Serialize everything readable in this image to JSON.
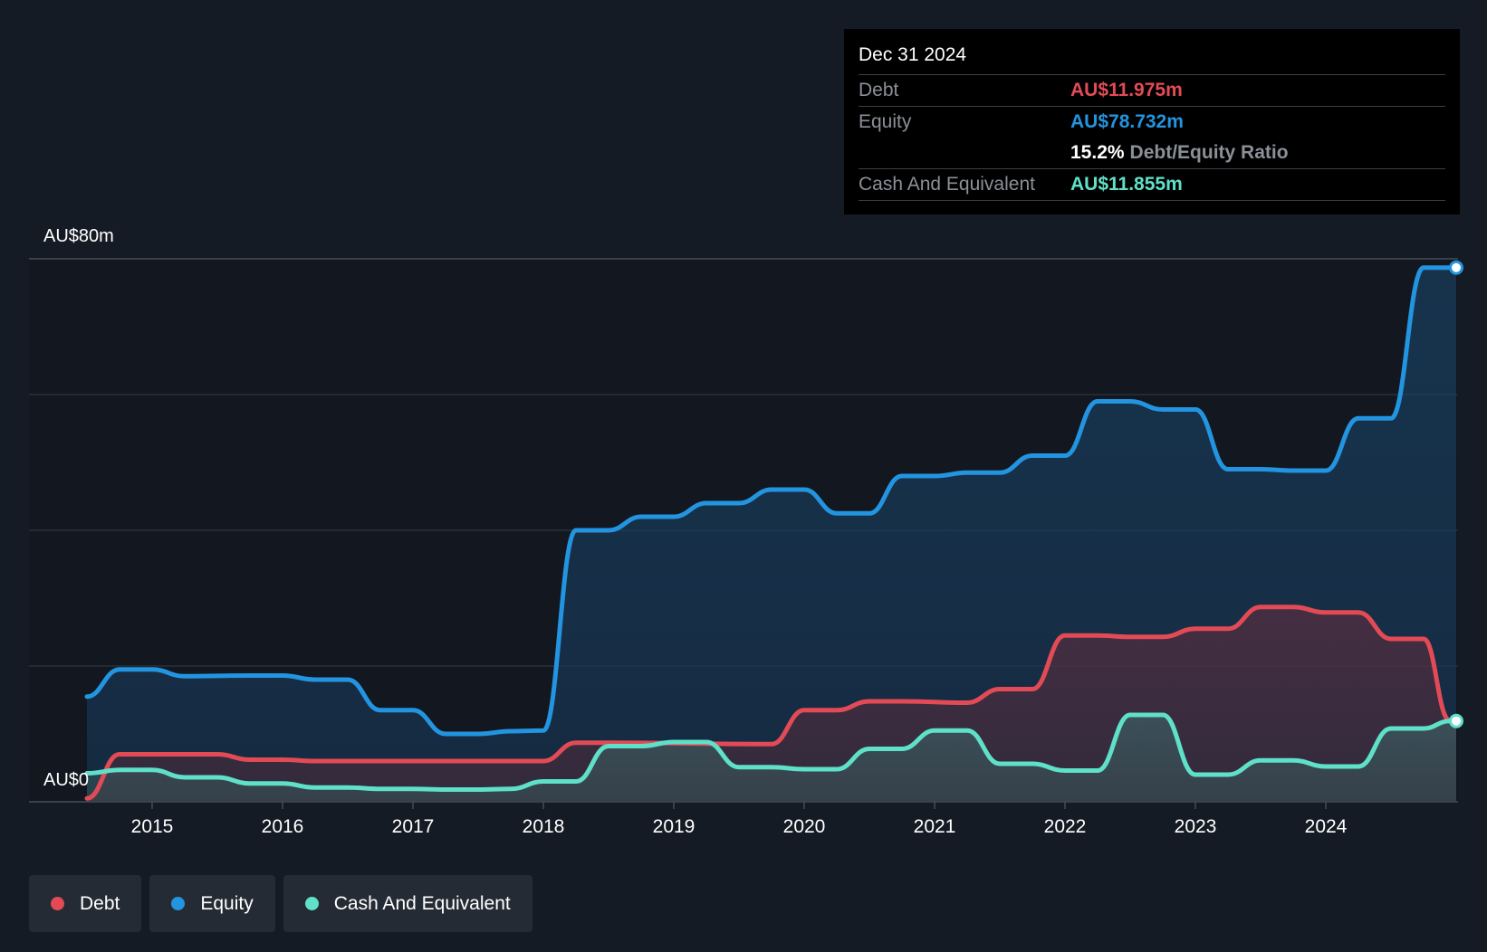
{
  "chart_data": {
    "type": "area",
    "y_axis": {
      "top_label": "AU$80m",
      "bottom_label": "AU$0",
      "ylim": [
        0,
        80
      ],
      "gridlines": [
        0,
        20,
        40,
        60,
        80
      ]
    },
    "x_axis": {
      "ticks": [
        "2015",
        "2016",
        "2017",
        "2018",
        "2019",
        "2020",
        "2021",
        "2022",
        "2023",
        "2024"
      ],
      "xlim": [
        2014.5,
        2025.0
      ]
    },
    "series": [
      {
        "name": "Equity",
        "color": "#2394df",
        "points": [
          [
            2014.5,
            15.5
          ],
          [
            2014.75,
            19.5
          ],
          [
            2015.0,
            19.5
          ],
          [
            2015.25,
            18.5
          ],
          [
            2015.75,
            18.6
          ],
          [
            2016.0,
            18.6
          ],
          [
            2016.25,
            18.0
          ],
          [
            2016.5,
            18.0
          ],
          [
            2016.75,
            13.5
          ],
          [
            2017.0,
            13.5
          ],
          [
            2017.25,
            10.0
          ],
          [
            2017.5,
            10.0
          ],
          [
            2017.75,
            10.4
          ],
          [
            2018.0,
            10.5
          ],
          [
            2018.25,
            40.0
          ],
          [
            2018.5,
            40.0
          ],
          [
            2018.75,
            42.0
          ],
          [
            2019.0,
            42.0
          ],
          [
            2019.25,
            44.0
          ],
          [
            2019.5,
            44.0
          ],
          [
            2019.75,
            46.0
          ],
          [
            2020.0,
            46.0
          ],
          [
            2020.25,
            42.5
          ],
          [
            2020.5,
            42.5
          ],
          [
            2020.75,
            48.0
          ],
          [
            2021.0,
            48.0
          ],
          [
            2021.25,
            48.5
          ],
          [
            2021.5,
            48.5
          ],
          [
            2021.75,
            51.0
          ],
          [
            2022.0,
            51.0
          ],
          [
            2022.25,
            59.0
          ],
          [
            2022.5,
            59.0
          ],
          [
            2022.75,
            57.8
          ],
          [
            2023.0,
            57.8
          ],
          [
            2023.25,
            49.0
          ],
          [
            2023.5,
            49.0
          ],
          [
            2023.75,
            48.8
          ],
          [
            2024.0,
            48.8
          ],
          [
            2024.25,
            56.5
          ],
          [
            2024.5,
            56.5
          ],
          [
            2024.75,
            78.7
          ],
          [
            2025.0,
            78.7
          ]
        ]
      },
      {
        "name": "Debt",
        "color": "#e24b55",
        "points": [
          [
            2014.5,
            0.5
          ],
          [
            2014.75,
            7.0
          ],
          [
            2015.0,
            7.0
          ],
          [
            2015.5,
            7.0
          ],
          [
            2015.75,
            6.2
          ],
          [
            2016.0,
            6.2
          ],
          [
            2016.25,
            6.0
          ],
          [
            2017.75,
            6.0
          ],
          [
            2018.0,
            6.0
          ],
          [
            2018.25,
            8.7
          ],
          [
            2018.5,
            8.7
          ],
          [
            2019.75,
            8.5
          ],
          [
            2020.0,
            13.5
          ],
          [
            2020.25,
            13.5
          ],
          [
            2020.5,
            14.8
          ],
          [
            2020.75,
            14.8
          ],
          [
            2021.25,
            14.6
          ],
          [
            2021.5,
            16.6
          ],
          [
            2021.75,
            16.6
          ],
          [
            2022.0,
            24.5
          ],
          [
            2022.25,
            24.5
          ],
          [
            2022.5,
            24.3
          ],
          [
            2022.75,
            24.3
          ],
          [
            2023.0,
            25.5
          ],
          [
            2023.25,
            25.5
          ],
          [
            2023.5,
            28.7
          ],
          [
            2023.75,
            28.7
          ],
          [
            2024.0,
            27.9
          ],
          [
            2024.25,
            27.9
          ],
          [
            2024.5,
            24.0
          ],
          [
            2024.75,
            24.0
          ],
          [
            2024.95,
            12.0
          ],
          [
            2025.0,
            12.0
          ]
        ]
      },
      {
        "name": "Cash And Equivalent",
        "color": "#5fe0c9",
        "points": [
          [
            2014.5,
            4.2
          ],
          [
            2014.75,
            4.7
          ],
          [
            2015.0,
            4.7
          ],
          [
            2015.25,
            3.6
          ],
          [
            2015.5,
            3.6
          ],
          [
            2015.75,
            2.7
          ],
          [
            2016.0,
            2.7
          ],
          [
            2016.25,
            2.1
          ],
          [
            2016.5,
            2.1
          ],
          [
            2016.75,
            1.9
          ],
          [
            2017.0,
            1.9
          ],
          [
            2017.25,
            1.8
          ],
          [
            2017.5,
            1.8
          ],
          [
            2017.75,
            1.9
          ],
          [
            2018.0,
            3.0
          ],
          [
            2018.25,
            3.0
          ],
          [
            2018.5,
            8.2
          ],
          [
            2018.75,
            8.2
          ],
          [
            2019.0,
            8.8
          ],
          [
            2019.25,
            8.8
          ],
          [
            2019.5,
            5.1
          ],
          [
            2019.75,
            5.1
          ],
          [
            2020.0,
            4.8
          ],
          [
            2020.25,
            4.8
          ],
          [
            2020.5,
            7.8
          ],
          [
            2020.75,
            7.8
          ],
          [
            2021.0,
            10.5
          ],
          [
            2021.25,
            10.5
          ],
          [
            2021.5,
            5.6
          ],
          [
            2021.75,
            5.6
          ],
          [
            2022.0,
            4.6
          ],
          [
            2022.25,
            4.6
          ],
          [
            2022.5,
            12.8
          ],
          [
            2022.75,
            12.8
          ],
          [
            2023.0,
            4.0
          ],
          [
            2023.25,
            4.0
          ],
          [
            2023.5,
            6.1
          ],
          [
            2023.75,
            6.1
          ],
          [
            2024.0,
            5.2
          ],
          [
            2024.25,
            5.2
          ],
          [
            2024.5,
            10.8
          ],
          [
            2024.75,
            10.8
          ],
          [
            2024.95,
            11.9
          ],
          [
            2025.0,
            11.9
          ]
        ]
      }
    ]
  },
  "tooltip": {
    "date": "Dec 31 2024",
    "debt_label": "Debt",
    "debt_value": "AU$11.975m",
    "equity_label": "Equity",
    "equity_value": "AU$78.732m",
    "ratio_value": "15.2%",
    "ratio_label": "Debt/Equity Ratio",
    "cash_label": "Cash And Equivalent",
    "cash_value": "AU$11.855m"
  },
  "legend": {
    "items": [
      {
        "label": "Debt",
        "color": "#e24b55"
      },
      {
        "label": "Equity",
        "color": "#2394df"
      },
      {
        "label": "Cash And Equivalent",
        "color": "#5fe0c9"
      }
    ]
  },
  "colors": {
    "background": "#151b24",
    "plot_background": "#121720",
    "grid": "#3a414c",
    "debt": "#e24b55",
    "equity": "#2394df",
    "cash": "#5fe0c9"
  }
}
